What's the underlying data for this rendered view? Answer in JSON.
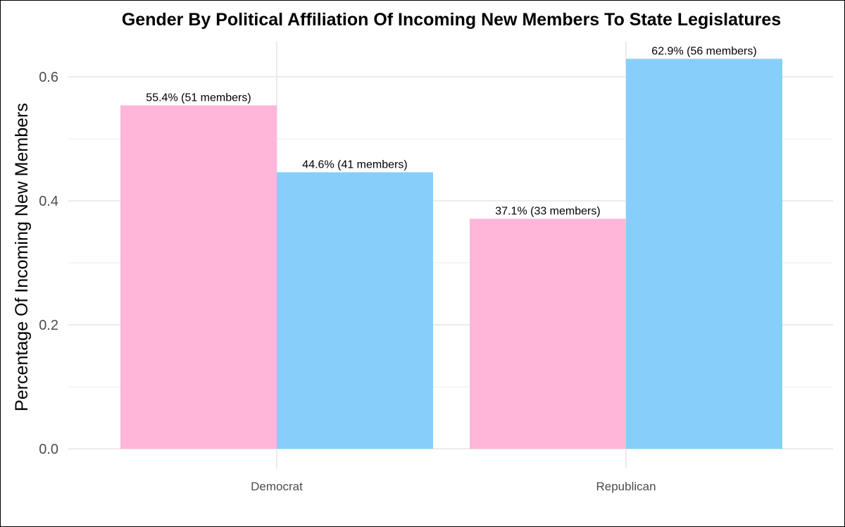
{
  "chart_data": {
    "type": "bar",
    "title": "Gender By Political Affiliation Of Incoming New Members To State Legislatures",
    "xlabel": "",
    "ylabel": "Percentage Of Incoming New Members",
    "categories": [
      "Democrat",
      "Republican"
    ],
    "ylim": [
      0,
      0.66
    ],
    "yticks": [
      "0.0",
      "0.2",
      "0.4",
      "0.6"
    ],
    "grid": true,
    "legend": "none",
    "series": [
      {
        "color": "#FFB6D9",
        "values": [
          0.554,
          0.371
        ],
        "labels": [
          "55.4% (51 members)",
          "37.1% (33 members)"
        ]
      },
      {
        "color": "#87CEFA",
        "values": [
          0.446,
          0.629
        ],
        "labels": [
          "44.6% (41 members)",
          "62.9% (56 members)"
        ]
      }
    ]
  }
}
